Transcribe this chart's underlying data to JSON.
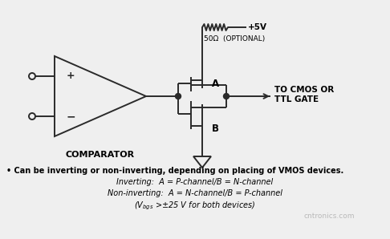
{
  "bg_color": "#efefef",
  "line_color": "#2a2a2a",
  "bullet_text": "• Can be inverting or non-inverting, depending on placing of VMOS devices.",
  "inverting_text": "Inverting:  A = P-channel/B = N-channel",
  "noninverting_text": "Non-inverting:  A = N-channel/B = P-channel",
  "vbgs_rest": " >±25 V for both devices)",
  "supply_label": "+5V",
  "resistor_label": "50Ω  (OPTIONAL)",
  "node_a_label": "A",
  "node_b_label": "B",
  "output_label": "TO CMOS OR\nTTL GATE",
  "comparator_label": "COMPARATOR"
}
